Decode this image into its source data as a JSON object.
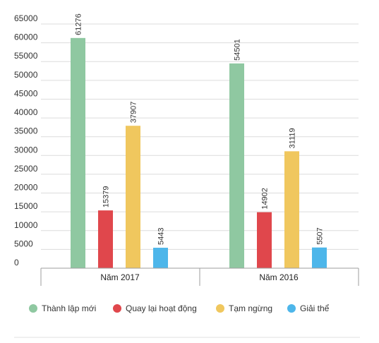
{
  "chart_data": {
    "type": "bar",
    "categories": [
      "Năm 2017",
      "Năm 2016"
    ],
    "series": [
      {
        "name": "Thành lập mới",
        "color": "#8fc8a1",
        "values": [
          61276,
          54501
        ]
      },
      {
        "name": "Quay lại hoạt động",
        "color": "#e0474c",
        "values": [
          15379,
          14902
        ]
      },
      {
        "name": "Tạm ngừng",
        "color": "#f0c75e",
        "values": [
          37907,
          31119
        ]
      },
      {
        "name": "Giải thể",
        "color": "#4db6ea",
        "values": [
          5443,
          5507
        ]
      }
    ],
    "title": "",
    "xlabel": "",
    "ylabel": "",
    "ylim": [
      0,
      65000
    ],
    "yticks": [
      "0",
      "5000",
      "10000",
      "15000",
      "20000",
      "25000",
      "30000",
      "35000",
      "40000",
      "45000",
      "50000",
      "55000",
      "60000",
      "65000"
    ],
    "grid": true,
    "legend_position": "bottom"
  }
}
